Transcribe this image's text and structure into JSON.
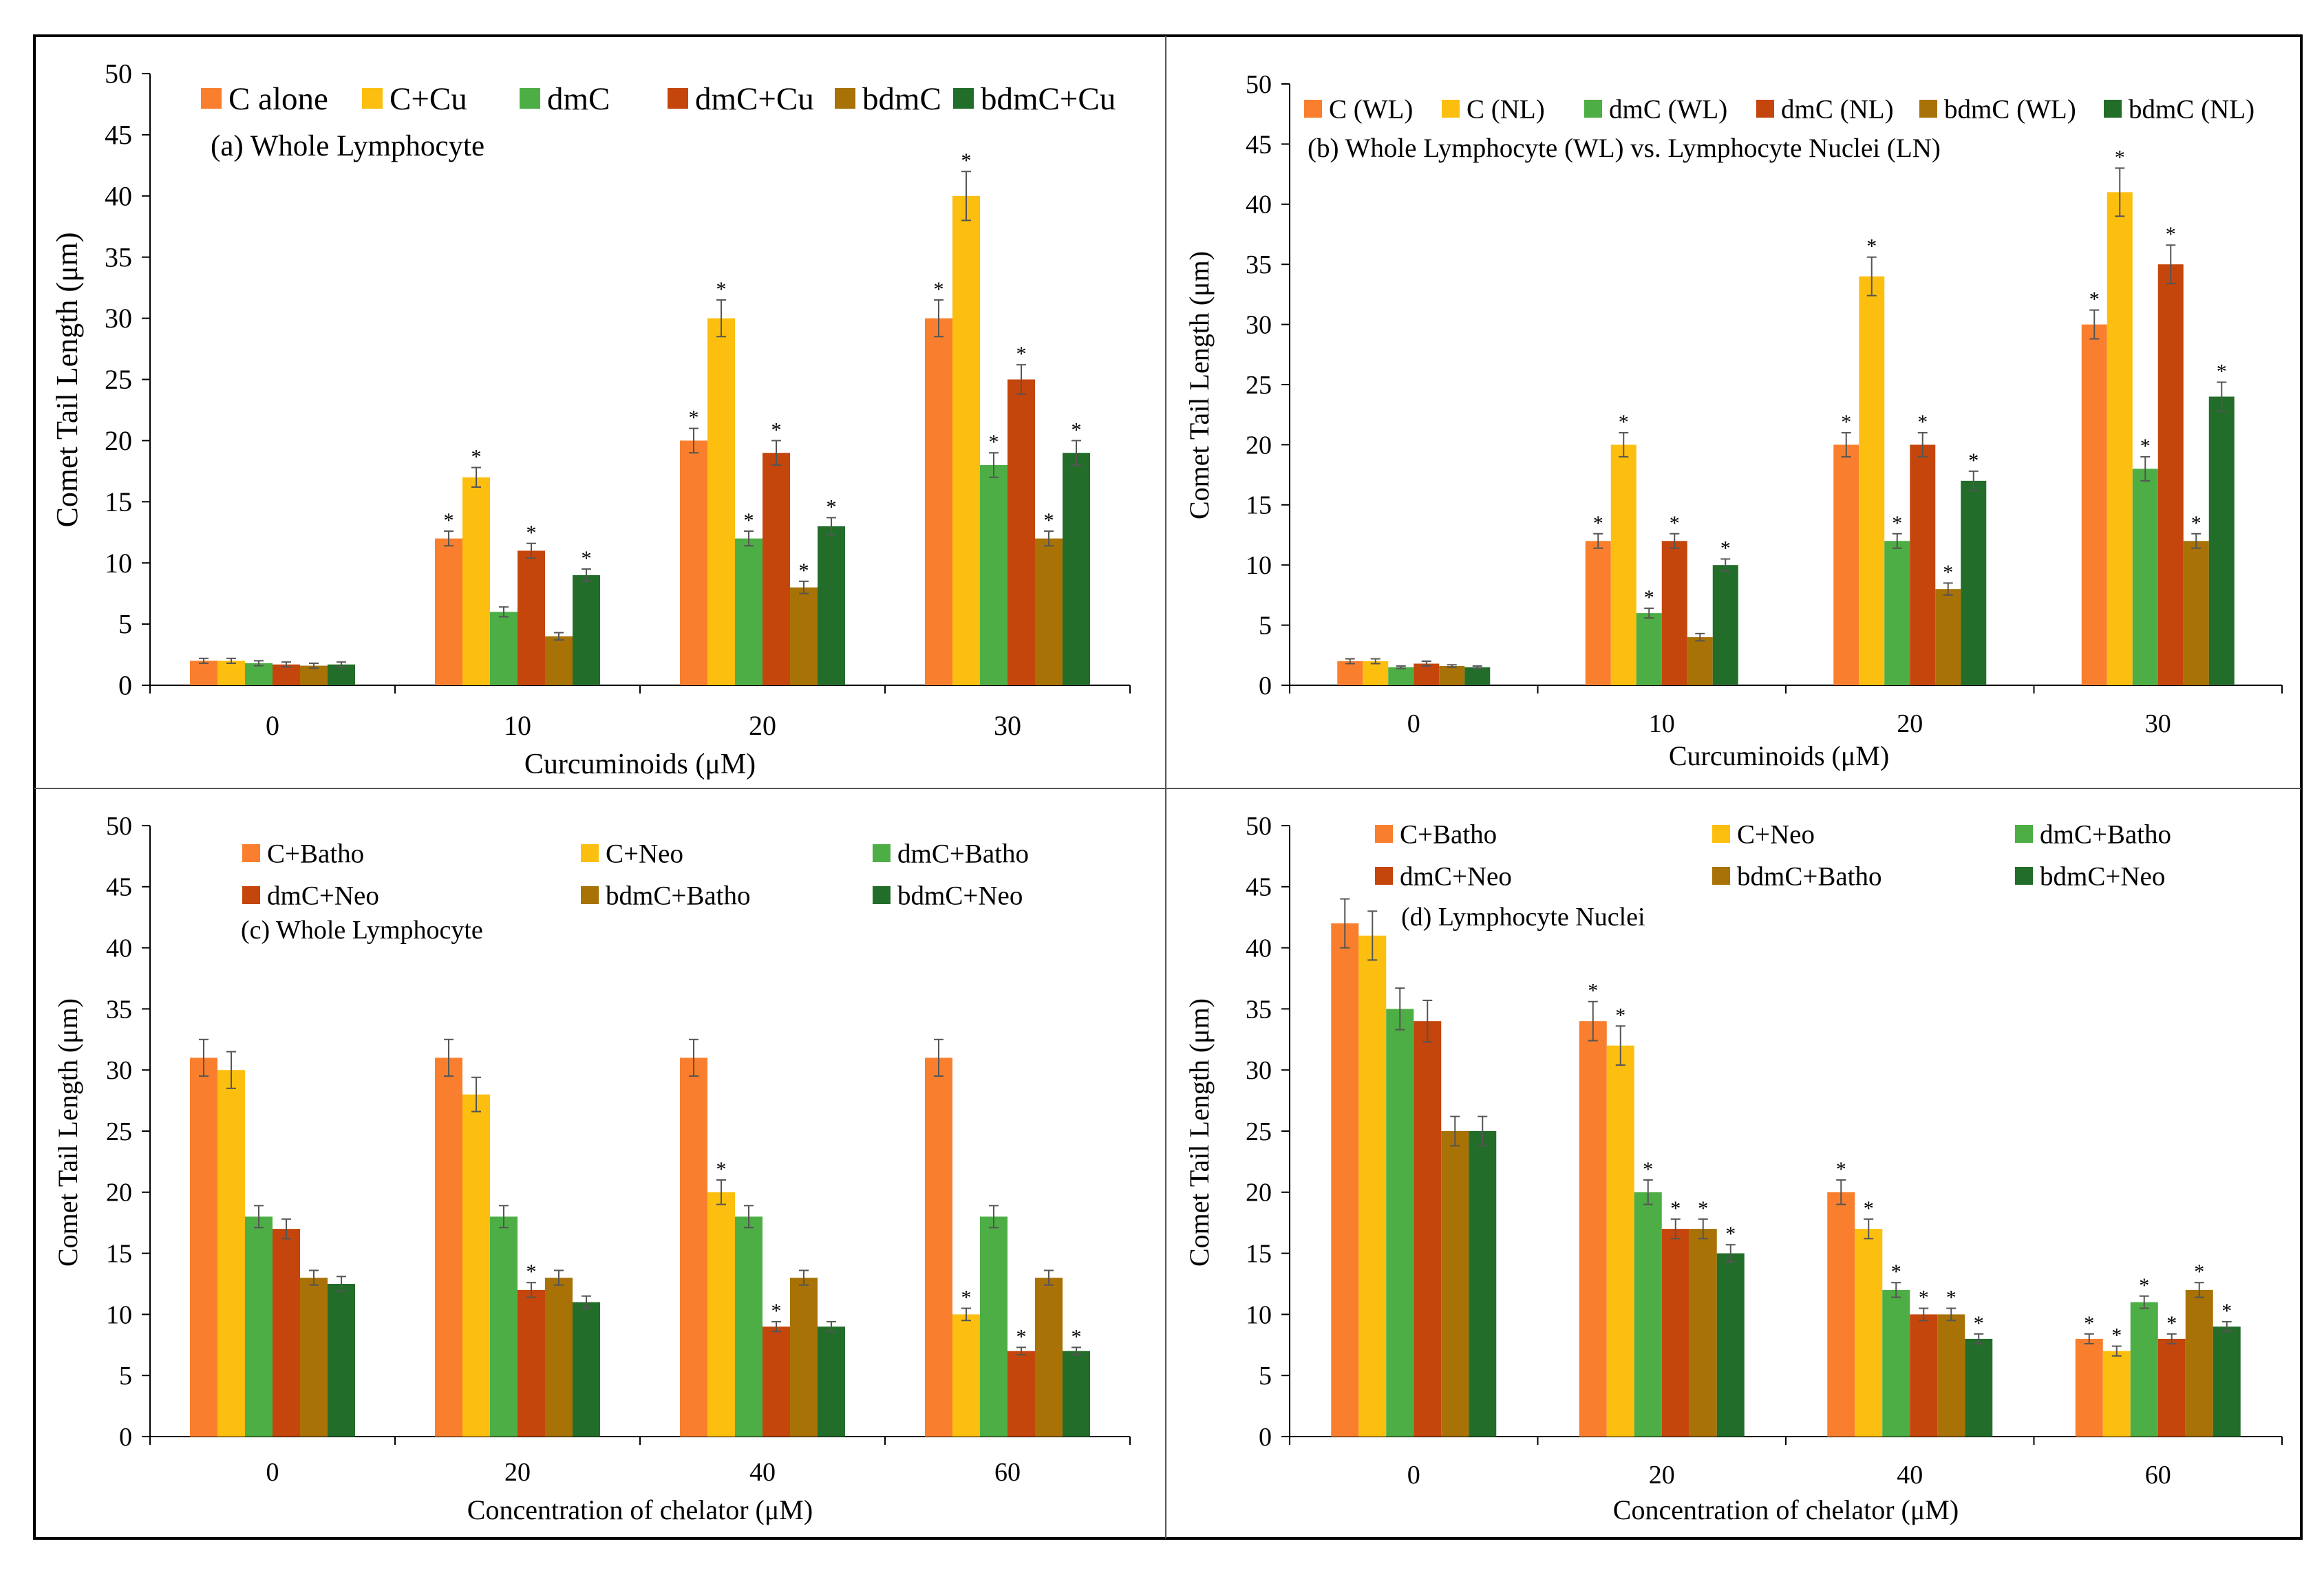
{
  "colors": {
    "orange": "#f97f2e",
    "yellow": "#fdbf0f",
    "green": "#4cae44",
    "darkorange": "#c4460c",
    "olive": "#a87207",
    "darkgreen": "#236d2a"
  },
  "chart_data": [
    {
      "type": "bar",
      "panel_label": "(a) Whole Lymphocyte",
      "xlabel": "Curcuminoids (μM)",
      "ylabel": "Comet Tail Length (μm)",
      "ylim": [
        0,
        50
      ],
      "yticks": [
        "0",
        "5",
        "10",
        "15",
        "20",
        "25",
        "30",
        "35",
        "40",
        "45",
        "50"
      ],
      "categories": [
        "0",
        "10",
        "20",
        "30"
      ],
      "legend_layout": "single-row-top",
      "series": [
        {
          "name": "C alone",
          "color": "#f97f2e",
          "values": [
            2,
            12,
            20,
            30
          ],
          "errors": [
            0.2,
            0.6,
            1.0,
            1.5
          ],
          "sig": [
            "",
            "*",
            "*",
            "*"
          ]
        },
        {
          "name": "C+Cu",
          "color": "#fdbf0f",
          "values": [
            2,
            17,
            30,
            40
          ],
          "errors": [
            0.2,
            0.8,
            1.5,
            2.0
          ],
          "sig": [
            "",
            "*",
            "*",
            "*"
          ]
        },
        {
          "name": "dmC",
          "color": "#4cae44",
          "values": [
            1.8,
            6,
            12,
            18
          ],
          "errors": [
            0.2,
            0.4,
            0.6,
            1.0
          ],
          "sig": [
            "",
            "",
            "*",
            "*"
          ]
        },
        {
          "name": "dmC+Cu",
          "color": "#c4460c",
          "values": [
            1.7,
            11,
            19,
            25
          ],
          "errors": [
            0.2,
            0.6,
            1.0,
            1.2
          ],
          "sig": [
            "",
            "*",
            "*",
            "*"
          ]
        },
        {
          "name": "bdmC",
          "color": "#a87207",
          "values": [
            1.6,
            4,
            8,
            12
          ],
          "errors": [
            0.2,
            0.3,
            0.5,
            0.6
          ],
          "sig": [
            "",
            "",
            "*",
            "*"
          ]
        },
        {
          "name": "bdmC+Cu",
          "color": "#236d2a",
          "values": [
            1.7,
            9,
            13,
            19
          ],
          "errors": [
            0.2,
            0.5,
            0.7,
            1.0
          ],
          "sig": [
            "",
            "*",
            "*",
            "*"
          ]
        }
      ]
    },
    {
      "type": "bar",
      "panel_label": "(b) Whole Lymphocyte (WL) vs. Lymphocyte Nuclei (LN)",
      "xlabel": "Curcuminoids (μM)",
      "ylabel": "Comet Tail Length (μm)",
      "ylim": [
        0,
        50
      ],
      "yticks": [
        "0",
        "5",
        "10",
        "15",
        "20",
        "25",
        "30",
        "35",
        "40",
        "45",
        "50"
      ],
      "categories": [
        "0",
        "10",
        "20",
        "30"
      ],
      "legend_layout": "single-row-top",
      "series": [
        {
          "name": "C (WL)",
          "color": "#f97f2e",
          "values": [
            2,
            12,
            20,
            30
          ],
          "errors": [
            0.2,
            0.6,
            1.0,
            1.2
          ],
          "sig": [
            "",
            "*",
            "*",
            "*"
          ]
        },
        {
          "name": "C (NL)",
          "color": "#fdbf0f",
          "values": [
            2,
            20,
            34,
            41
          ],
          "errors": [
            0.2,
            1.0,
            1.6,
            2.0
          ],
          "sig": [
            "",
            "*",
            "*",
            "*"
          ]
        },
        {
          "name": "dmC (WL)",
          "color": "#4cae44",
          "values": [
            1.5,
            6,
            12,
            18
          ],
          "errors": [
            0.1,
            0.4,
            0.6,
            1.0
          ],
          "sig": [
            "",
            "*",
            "*",
            "*"
          ]
        },
        {
          "name": "dmC (NL)",
          "color": "#c4460c",
          "values": [
            1.8,
            12,
            20,
            35
          ],
          "errors": [
            0.2,
            0.6,
            1.0,
            1.6
          ],
          "sig": [
            "",
            "*",
            "*",
            "*"
          ]
        },
        {
          "name": "bdmC (WL)",
          "color": "#a87207",
          "values": [
            1.6,
            4,
            8,
            12
          ],
          "errors": [
            0.1,
            0.3,
            0.5,
            0.6
          ],
          "sig": [
            "",
            "",
            "*",
            "*"
          ]
        },
        {
          "name": "bdmC (NL)",
          "color": "#236d2a",
          "values": [
            1.5,
            10,
            17,
            24
          ],
          "errors": [
            0.1,
            0.5,
            0.8,
            1.2
          ],
          "sig": [
            "",
            "*",
            "*",
            "*"
          ]
        }
      ]
    },
    {
      "type": "bar",
      "panel_label": "(c) Whole Lymphocyte",
      "xlabel": "Concentration of chelator (μM)",
      "ylabel": "Comet Tail Length (μm)",
      "ylim": [
        0,
        50
      ],
      "yticks": [
        "0",
        "5",
        "10",
        "15",
        "20",
        "25",
        "30",
        "35",
        "40",
        "45",
        "50"
      ],
      "categories": [
        "0",
        "20",
        "40",
        "60"
      ],
      "legend_layout": "two-rows-top",
      "series": [
        {
          "name": "C+Batho",
          "color": "#f97f2e",
          "values": [
            31,
            31,
            31,
            31
          ],
          "errors": [
            1.5,
            1.5,
            1.5,
            1.5
          ],
          "sig": [
            "",
            "",
            "",
            ""
          ]
        },
        {
          "name": "C+Neo",
          "color": "#fdbf0f",
          "values": [
            30,
            28,
            20,
            10
          ],
          "errors": [
            1.5,
            1.4,
            1.0,
            0.5
          ],
          "sig": [
            "",
            "",
            "*",
            "*"
          ]
        },
        {
          "name": "dmC+Batho",
          "color": "#4cae44",
          "values": [
            18,
            18,
            18,
            18
          ],
          "errors": [
            0.9,
            0.9,
            0.9,
            0.9
          ],
          "sig": [
            "",
            "",
            "",
            ""
          ]
        },
        {
          "name": "dmC+Neo",
          "color": "#c4460c",
          "values": [
            17,
            12,
            9,
            7
          ],
          "errors": [
            0.8,
            0.6,
            0.4,
            0.3
          ],
          "sig": [
            "",
            "*",
            "*",
            "*"
          ]
        },
        {
          "name": "bdmC+Batho",
          "color": "#a87207",
          "values": [
            13,
            13,
            13,
            13
          ],
          "errors": [
            0.6,
            0.6,
            0.6,
            0.6
          ],
          "sig": [
            "",
            "",
            "",
            ""
          ]
        },
        {
          "name": "bdmC+Neo",
          "color": "#236d2a",
          "values": [
            12.5,
            11,
            9,
            7
          ],
          "errors": [
            0.6,
            0.5,
            0.4,
            0.3
          ],
          "sig": [
            "",
            "",
            "",
            "*"
          ]
        }
      ]
    },
    {
      "type": "bar",
      "panel_label": "(d) Lymphocyte Nuclei",
      "xlabel": "Concentration of chelator (μM)",
      "ylabel": "Comet Tail Length (μm)",
      "ylim": [
        0,
        50
      ],
      "yticks": [
        "0",
        "5",
        "10",
        "15",
        "20",
        "25",
        "30",
        "35",
        "40",
        "45",
        "50"
      ],
      "categories": [
        "0",
        "20",
        "40",
        "60"
      ],
      "legend_layout": "two-rows-top",
      "series": [
        {
          "name": "C+Batho",
          "color": "#f97f2e",
          "values": [
            42,
            34,
            20,
            8
          ],
          "errors": [
            2.0,
            1.6,
            1.0,
            0.4
          ],
          "sig": [
            "",
            "*",
            "*",
            "*"
          ]
        },
        {
          "name": "C+Neo",
          "color": "#fdbf0f",
          "values": [
            41,
            32,
            17,
            7
          ],
          "errors": [
            2.0,
            1.6,
            0.8,
            0.4
          ],
          "sig": [
            "",
            "*",
            "*",
            "*"
          ]
        },
        {
          "name": "dmC+Batho",
          "color": "#4cae44",
          "values": [
            35,
            20,
            12,
            11
          ],
          "errors": [
            1.7,
            1.0,
            0.6,
            0.5
          ],
          "sig": [
            "",
            "*",
            "*",
            "*"
          ]
        },
        {
          "name": "dmC+Neo",
          "color": "#c4460c",
          "values": [
            34,
            17,
            10,
            8
          ],
          "errors": [
            1.7,
            0.8,
            0.5,
            0.4
          ],
          "sig": [
            "",
            "*",
            "*",
            "*"
          ]
        },
        {
          "name": "bdmC+Batho",
          "color": "#a87207",
          "values": [
            25,
            17,
            10,
            12
          ],
          "errors": [
            1.2,
            0.8,
            0.5,
            0.6
          ],
          "sig": [
            "",
            "*",
            "*",
            "*"
          ]
        },
        {
          "name": "bdmC+Neo",
          "color": "#236d2a",
          "values": [
            25,
            15,
            8,
            9
          ],
          "errors": [
            1.2,
            0.7,
            0.4,
            0.4
          ],
          "sig": [
            "",
            "*",
            "*",
            "*"
          ]
        }
      ]
    }
  ]
}
